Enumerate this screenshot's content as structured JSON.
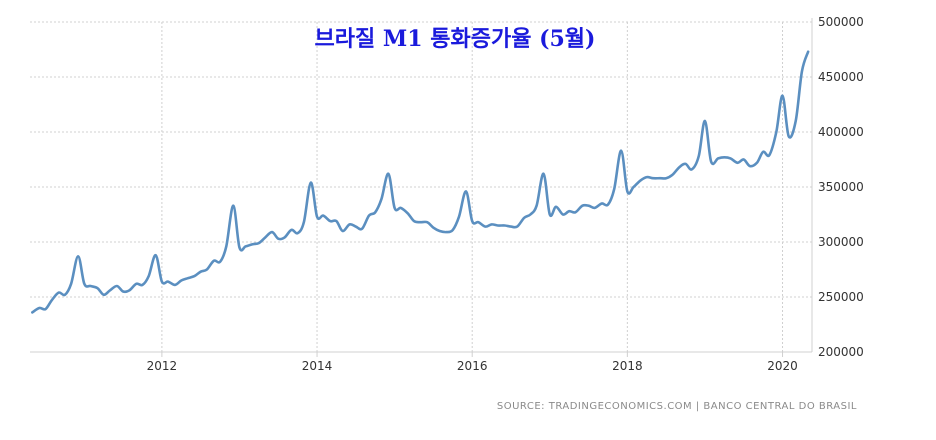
{
  "chart_data": {
    "type": "line",
    "title": "브라질 M1 통화증가율 (5월)",
    "source": "SOURCE: TRADINGECONOMICS.COM  |  BANCO CENTRAL DO BRASIL",
    "xlabel": "",
    "ylabel": "",
    "xlim": [
      2010.3,
      2020.38
    ],
    "ylim": [
      200000,
      500000
    ],
    "x_ticks": [
      2012,
      2014,
      2016,
      2018,
      2020
    ],
    "y_ticks": [
      200000,
      250000,
      300000,
      350000,
      400000,
      450000,
      500000
    ],
    "grid": true,
    "line_color": "#5b8fc0",
    "series": [
      {
        "x": [
          2010.33,
          2010.42,
          2010.5,
          2010.58,
          2010.67,
          2010.75,
          2010.83,
          2010.92,
          2011.0,
          2011.08,
          2011.17,
          2011.25,
          2011.33,
          2011.42,
          2011.5,
          2011.58,
          2011.67,
          2011.75,
          2011.83,
          2011.92,
          2012.0,
          2012.08,
          2012.17,
          2012.25,
          2012.33,
          2012.42,
          2012.5,
          2012.58,
          2012.67,
          2012.75,
          2012.83,
          2012.92,
          2013.0,
          2013.08,
          2013.17,
          2013.25,
          2013.33,
          2013.42,
          2013.5,
          2013.58,
          2013.67,
          2013.75,
          2013.83,
          2013.92,
          2014.0,
          2014.08,
          2014.17,
          2014.25,
          2014.33,
          2014.42,
          2014.5,
          2014.58,
          2014.67,
          2014.75,
          2014.83,
          2014.92,
          2015.0,
          2015.08,
          2015.17,
          2015.25,
          2015.33,
          2015.42,
          2015.5,
          2015.58,
          2015.67,
          2015.75,
          2015.83,
          2015.92,
          2016.0,
          2016.08,
          2016.17,
          2016.25,
          2016.33,
          2016.42,
          2016.5,
          2016.58,
          2016.67,
          2016.75,
          2016.83,
          2016.92,
          2017.0,
          2017.08,
          2017.17,
          2017.25,
          2017.33,
          2017.42,
          2017.5,
          2017.58,
          2017.67,
          2017.75,
          2017.83,
          2017.92,
          2018.0,
          2018.08,
          2018.17,
          2018.25,
          2018.33,
          2018.42,
          2018.5,
          2018.58,
          2018.67,
          2018.75,
          2018.83,
          2018.92,
          2019.0,
          2019.08,
          2019.17,
          2019.25,
          2019.33,
          2019.42,
          2019.5,
          2019.58,
          2019.67,
          2019.75,
          2019.83,
          2019.92,
          2020.0,
          2020.08,
          2020.17,
          2020.25,
          2020.33
        ],
        "values": [
          236000,
          240000,
          239000,
          247000,
          254000,
          252000,
          262000,
          287000,
          262000,
          260000,
          258000,
          252000,
          256000,
          260000,
          255000,
          256000,
          262000,
          261000,
          269000,
          288000,
          264000,
          264000,
          261000,
          265000,
          267000,
          269000,
          273000,
          275000,
          283000,
          282000,
          296000,
          333000,
          295000,
          296000,
          298000,
          299000,
          304000,
          309000,
          303000,
          304000,
          311000,
          308000,
          318000,
          354000,
          323000,
          324000,
          319000,
          319000,
          310000,
          316000,
          314000,
          312000,
          324000,
          327000,
          339000,
          362000,
          331000,
          331000,
          326000,
          319000,
          318000,
          318000,
          313000,
          310000,
          309000,
          311000,
          323000,
          346000,
          319000,
          318000,
          314000,
          316000,
          315000,
          315000,
          314000,
          314000,
          322000,
          325000,
          333000,
          362000,
          325000,
          332000,
          325000,
          328000,
          327000,
          333000,
          333000,
          331000,
          335000,
          334000,
          348000,
          383000,
          346000,
          350000,
          356000,
          359000,
          358000,
          358000,
          358000,
          361000,
          368000,
          371000,
          366000,
          378000,
          410000,
          373000,
          376000,
          377000,
          376000,
          372000,
          375000,
          369000,
          372000,
          382000,
          379000,
          400000,
          433000,
          396000,
          410000,
          455000,
          473000
        ]
      }
    ]
  }
}
